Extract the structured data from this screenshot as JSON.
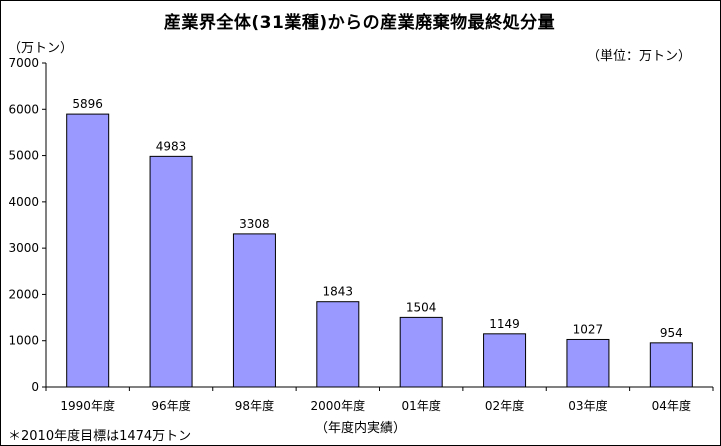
{
  "chart_data": {
    "type": "bar",
    "title": "産業界全体(31業種)からの産業廃棄物最終処分量",
    "ylabel": "（万トン）",
    "unit_note": "（単位：万トン）",
    "xlabel": "（年度内実績）",
    "footnote": "＊2010年度目標は1474万トン",
    "categories": [
      "1990年度",
      "96年度",
      "98年度",
      "2000年度",
      "01年度",
      "02年度",
      "03年度",
      "04年度"
    ],
    "values": [
      5896,
      4983,
      3308,
      1843,
      1504,
      1149,
      1027,
      954
    ],
    "ylim": [
      0,
      7000
    ],
    "yticks": [
      0,
      1000,
      2000,
      3000,
      4000,
      5000,
      6000,
      7000
    ],
    "grid": false,
    "legend": "none",
    "bar_color": "#9999ff",
    "bar_stroke": "#000000"
  }
}
